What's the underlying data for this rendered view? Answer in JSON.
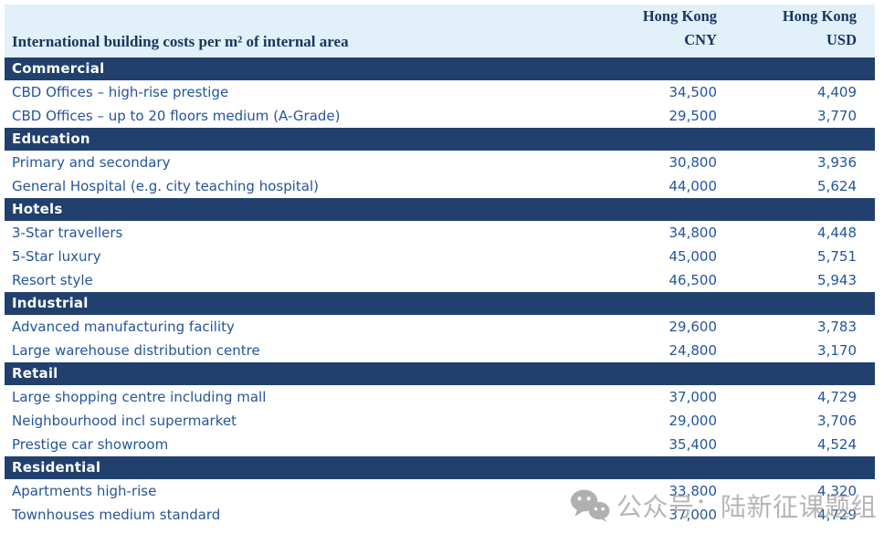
{
  "table": {
    "title": "International building costs per m² of internal area",
    "columns": [
      {
        "region": "Hong Kong",
        "currency": "CNY"
      },
      {
        "region": "Hong Kong",
        "currency": "USD"
      }
    ],
    "sections": [
      {
        "name": "Commercial",
        "rows": [
          {
            "label": "CBD Offices – high-rise prestige",
            "cny": "34,500",
            "usd": "4,409"
          },
          {
            "label": "CBD Offices – up to 20 floors medium (A-Grade)",
            "cny": "29,500",
            "usd": "3,770"
          }
        ]
      },
      {
        "name": "Education",
        "rows": [
          {
            "label": "Primary and secondary",
            "cny": "30,800",
            "usd": "3,936"
          },
          {
            "label": "General Hospital (e.g. city teaching hospital)",
            "cny": "44,000",
            "usd": "5,624"
          }
        ]
      },
      {
        "name": "Hotels",
        "rows": [
          {
            "label": "3-Star travellers",
            "cny": "34,800",
            "usd": "4,448"
          },
          {
            "label": "5-Star luxury",
            "cny": "45,000",
            "usd": "5,751"
          },
          {
            "label": "Resort style",
            "cny": "46,500",
            "usd": "5,943"
          }
        ]
      },
      {
        "name": "Industrial",
        "rows": [
          {
            "label": "Advanced manufacturing facility",
            "cny": "29,600",
            "usd": "3,783"
          },
          {
            "label": "Large warehouse distribution centre",
            "cny": "24,800",
            "usd": "3,170"
          }
        ]
      },
      {
        "name": "Retail",
        "rows": [
          {
            "label": "Large shopping centre including mall",
            "cny": "37,000",
            "usd": "4,729"
          },
          {
            "label": "Neighbourhood incl supermarket",
            "cny": "29,000",
            "usd": "3,706"
          },
          {
            "label": "Prestige car showroom",
            "cny": "35,400",
            "usd": "4,524"
          }
        ]
      },
      {
        "name": "Residential",
        "rows": [
          {
            "label": "Apartments high-rise",
            "cny": "33,800",
            "usd": "4,320"
          },
          {
            "label": "Townhouses medium standard",
            "cny": "37,000",
            "usd": "4,729"
          }
        ]
      }
    ]
  },
  "watermark": {
    "icon": "wechat-icon",
    "text": "公众号：陆新征课题组"
  },
  "colors": {
    "header_bg": "#e1f0f9",
    "section_band_bg": "#21406e",
    "header_text": "#17365d",
    "row_text": "#24559c",
    "watermark_gray": "#a6a6a6"
  }
}
